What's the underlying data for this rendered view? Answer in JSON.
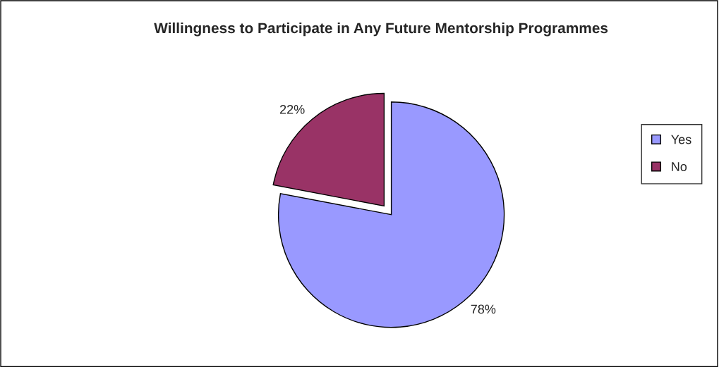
{
  "chart_data": {
    "type": "pie",
    "title": "Willingness to Participate in Any Future Mentorship Programmes",
    "categories": [
      "Yes",
      "No"
    ],
    "values": [
      78,
      22
    ],
    "colors": [
      "#9999ff",
      "#993366"
    ],
    "value_labels": [
      "78%",
      "22%"
    ],
    "legend": "right"
  }
}
